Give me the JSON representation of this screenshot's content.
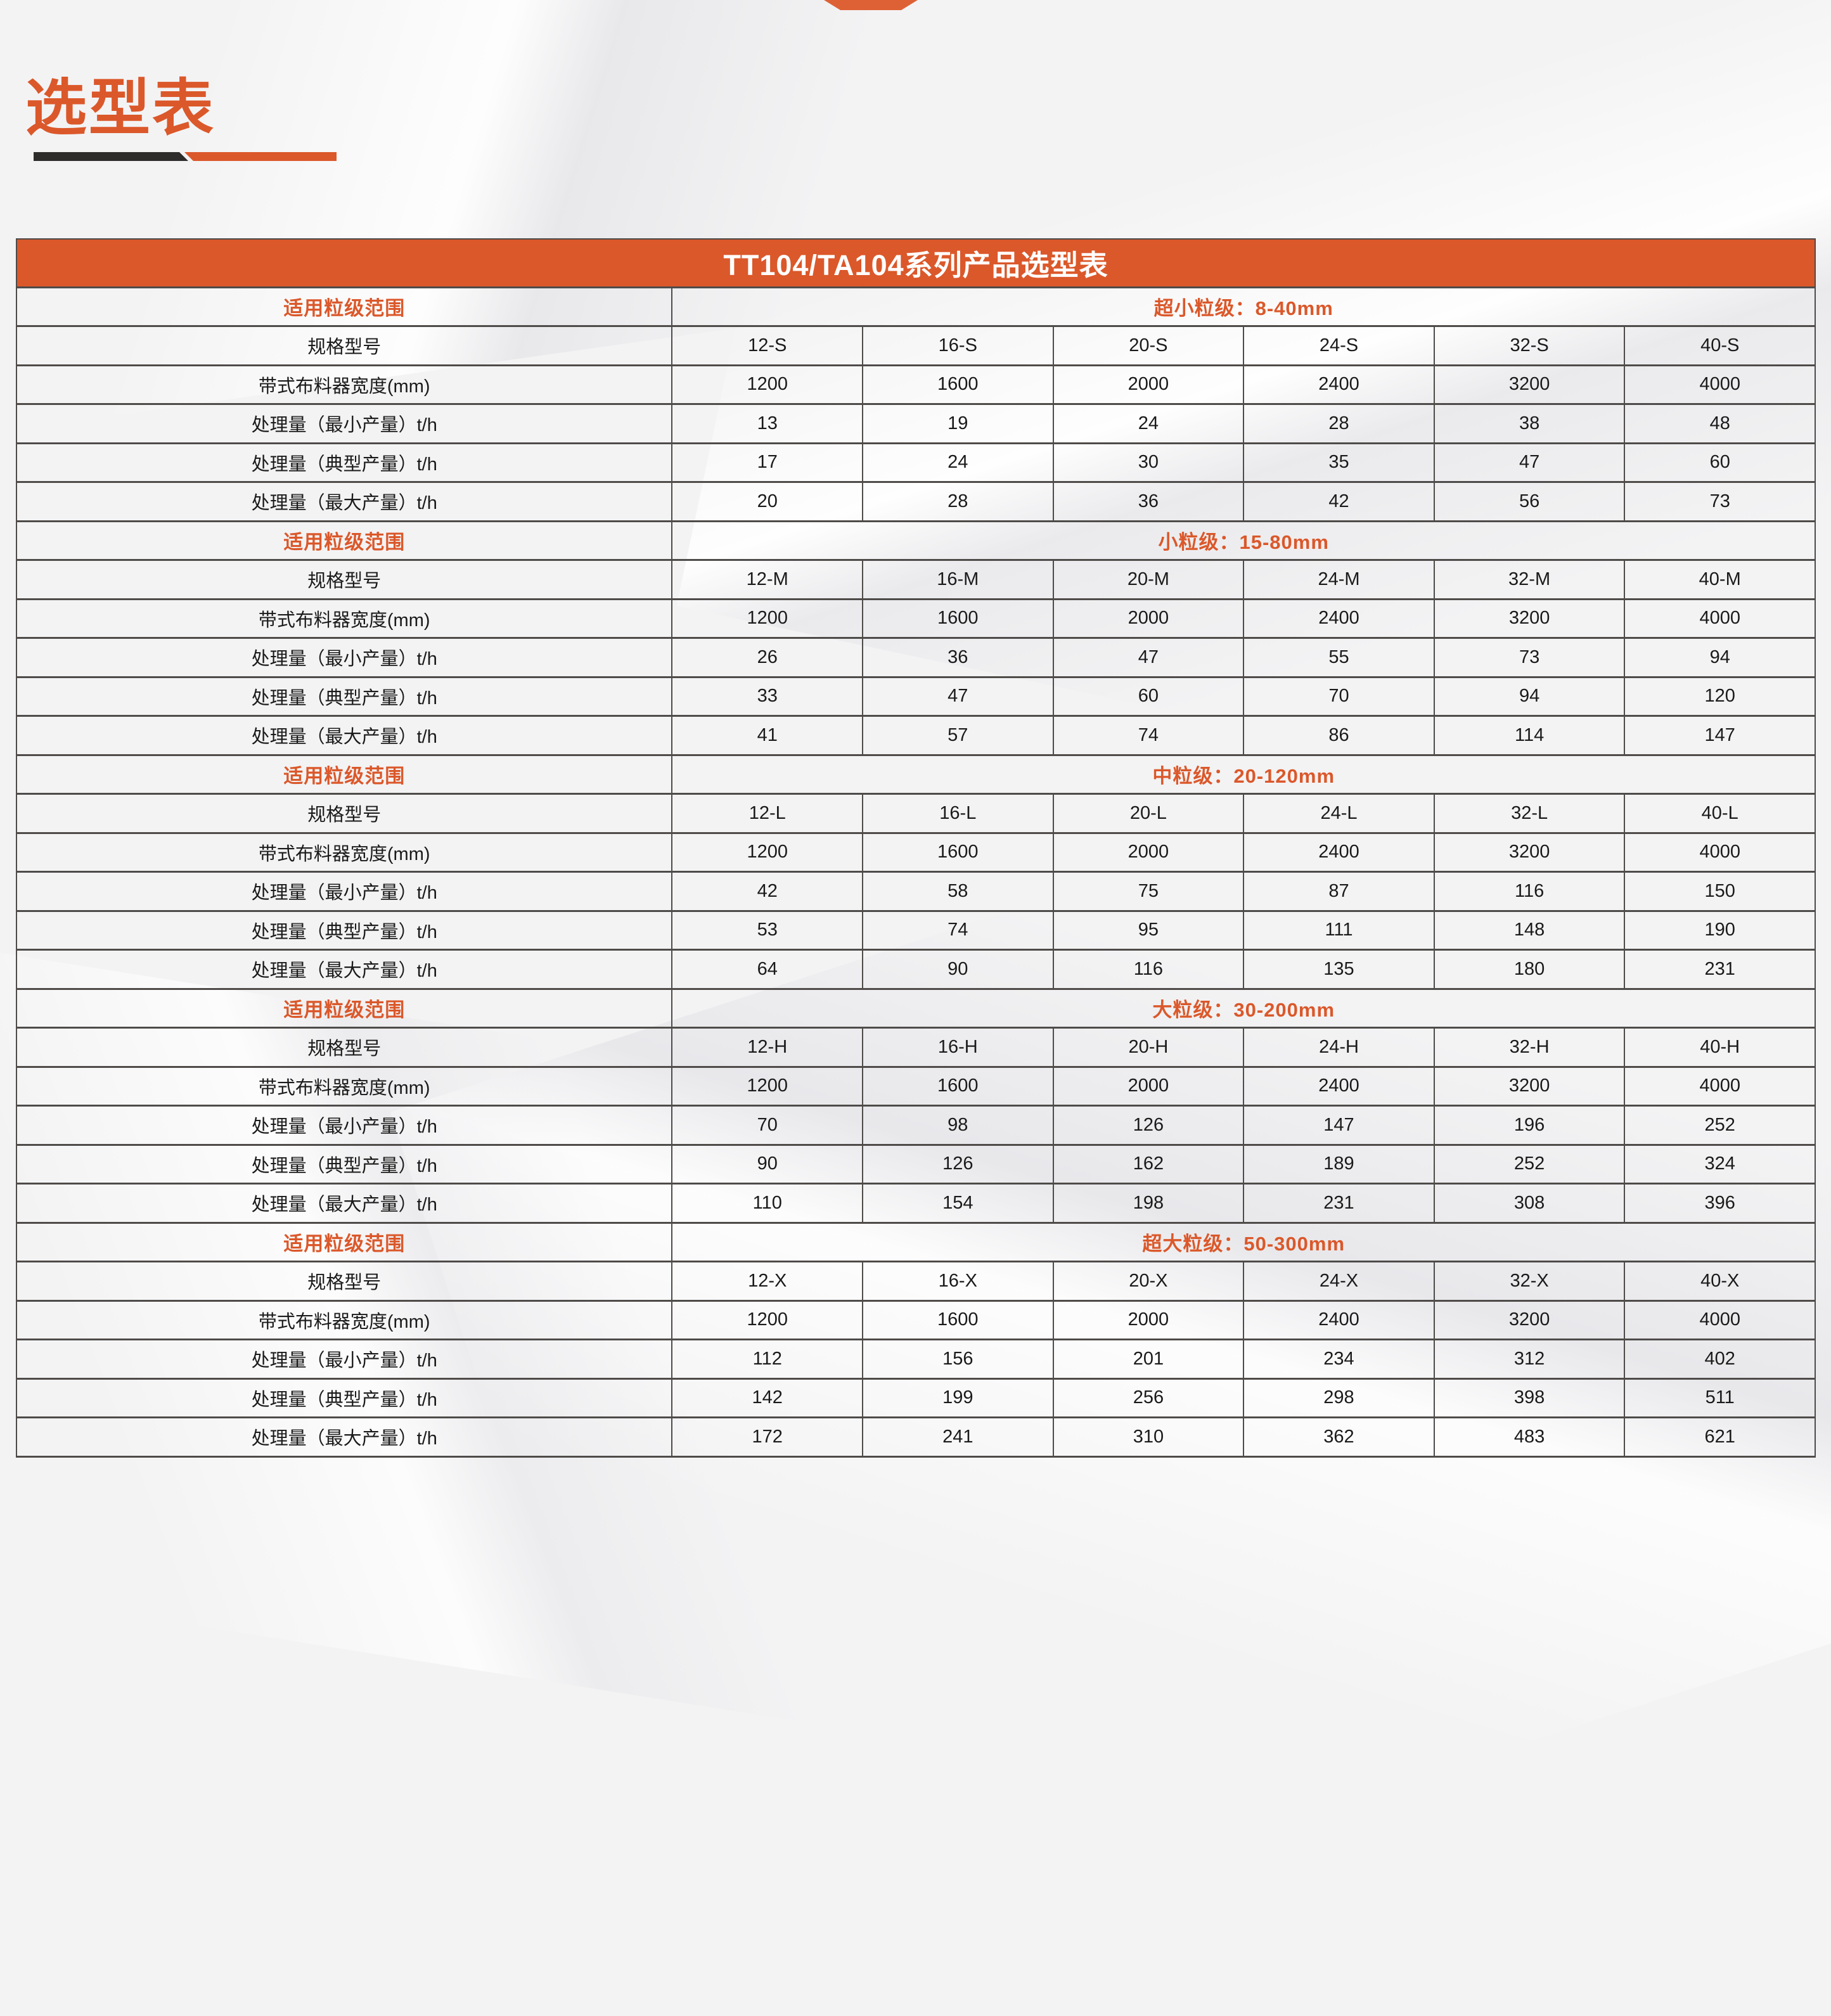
{
  "page": {
    "title": "选型表"
  },
  "colors": {
    "accent": "#db582a",
    "bar_dark": "#2e2c2b",
    "border": "#4e4b49",
    "text": "#1a1a1a",
    "background": "#f3f3f4"
  },
  "table": {
    "title": "TT104/TA104系列产品选型表",
    "range_label": "适用粒级范围",
    "sections": [
      {
        "range": "超小粒级：8-40mm",
        "rows": [
          {
            "label": "规格型号",
            "values": [
              "12-S",
              "16-S",
              "20-S",
              "24-S",
              "32-S",
              "40-S"
            ]
          },
          {
            "label": "带式布料器宽度(mm)",
            "values": [
              "1200",
              "1600",
              "2000",
              "2400",
              "3200",
              "4000"
            ]
          },
          {
            "label": "处理量（最小产量）t/h",
            "values": [
              "13",
              "19",
              "24",
              "28",
              "38",
              "48"
            ]
          },
          {
            "label": "处理量（典型产量）t/h",
            "values": [
              "17",
              "24",
              "30",
              "35",
              "47",
              "60"
            ]
          },
          {
            "label": "处理量（最大产量）t/h",
            "values": [
              "20",
              "28",
              "36",
              "42",
              "56",
              "73"
            ]
          }
        ]
      },
      {
        "range": "小粒级：15-80mm",
        "rows": [
          {
            "label": "规格型号",
            "values": [
              "12-M",
              "16-M",
              "20-M",
              "24-M",
              "32-M",
              "40-M"
            ]
          },
          {
            "label": "带式布料器宽度(mm)",
            "values": [
              "1200",
              "1600",
              "2000",
              "2400",
              "3200",
              "4000"
            ]
          },
          {
            "label": "处理量（最小产量）t/h",
            "values": [
              "26",
              "36",
              "47",
              "55",
              "73",
              "94"
            ]
          },
          {
            "label": "处理量（典型产量）t/h",
            "values": [
              "33",
              "47",
              "60",
              "70",
              "94",
              "120"
            ]
          },
          {
            "label": "处理量（最大产量）t/h",
            "values": [
              "41",
              "57",
              "74",
              "86",
              "114",
              "147"
            ]
          }
        ]
      },
      {
        "range": "中粒级：20-120mm",
        "rows": [
          {
            "label": "规格型号",
            "values": [
              "12-L",
              "16-L",
              "20-L",
              "24-L",
              "32-L",
              "40-L"
            ]
          },
          {
            "label": "带式布料器宽度(mm)",
            "values": [
              "1200",
              "1600",
              "2000",
              "2400",
              "3200",
              "4000"
            ]
          },
          {
            "label": "处理量（最小产量）t/h",
            "values": [
              "42",
              "58",
              "75",
              "87",
              "116",
              "150"
            ]
          },
          {
            "label": "处理量（典型产量）t/h",
            "values": [
              "53",
              "74",
              "95",
              "111",
              "148",
              "190"
            ]
          },
          {
            "label": "处理量（最大产量）t/h",
            "values": [
              "64",
              "90",
              "116",
              "135",
              "180",
              "231"
            ]
          }
        ]
      },
      {
        "range": "大粒级：30-200mm",
        "rows": [
          {
            "label": "规格型号",
            "values": [
              "12-H",
              "16-H",
              "20-H",
              "24-H",
              "32-H",
              "40-H"
            ]
          },
          {
            "label": "带式布料器宽度(mm)",
            "values": [
              "1200",
              "1600",
              "2000",
              "2400",
              "3200",
              "4000"
            ]
          },
          {
            "label": "处理量（最小产量）t/h",
            "values": [
              "70",
              "98",
              "126",
              "147",
              "196",
              "252"
            ]
          },
          {
            "label": "处理量（典型产量）t/h",
            "values": [
              "90",
              "126",
              "162",
              "189",
              "252",
              "324"
            ]
          },
          {
            "label": "处理量（最大产量）t/h",
            "values": [
              "110",
              "154",
              "198",
              "231",
              "308",
              "396"
            ]
          }
        ]
      },
      {
        "range": "超大粒级：50-300mm",
        "rows": [
          {
            "label": "规格型号",
            "values": [
              "12-X",
              "16-X",
              "20-X",
              "24-X",
              "32-X",
              "40-X"
            ]
          },
          {
            "label": "带式布料器宽度(mm)",
            "values": [
              "1200",
              "1600",
              "2000",
              "2400",
              "3200",
              "4000"
            ]
          },
          {
            "label": "处理量（最小产量）t/h",
            "values": [
              "112",
              "156",
              "201",
              "234",
              "312",
              "402"
            ]
          },
          {
            "label": "处理量（典型产量）t/h",
            "values": [
              "142",
              "199",
              "256",
              "298",
              "398",
              "511"
            ]
          },
          {
            "label": "处理量（最大产量）t/h",
            "values": [
              "172",
              "241",
              "310",
              "362",
              "483",
              "621"
            ]
          }
        ]
      }
    ]
  }
}
